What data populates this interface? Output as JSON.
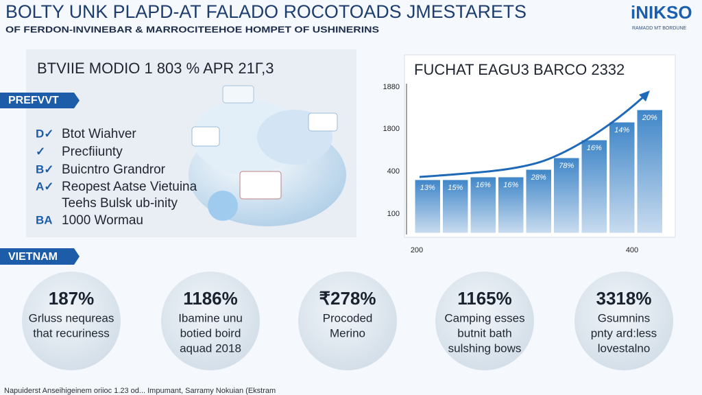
{
  "header": {
    "title": "BOLTY UNK PLAPD-AT FALADO ROCOTOADS JMESTARETS",
    "subtitle": "OF FERDON-INVINEBAR & MARROCITEEHOE HOMPET OF USHINERINS",
    "logo": "iNIKSO",
    "logo_tagline": "RAMADD MT BORDUNE"
  },
  "left_panel": {
    "title": "BTVIIE MODIO 1 803 % APR 21Г,3",
    "ribbon": "PREFVVT",
    "items": [
      {
        "marker": "D✓",
        "text": "Btot Wiahver"
      },
      {
        "marker": "✓",
        "text": "Precfiiunty"
      },
      {
        "marker": "B✓",
        "text": "Buicntro Grandror"
      },
      {
        "marker": "A✓",
        "text": "Reopest Aatse Vietuina"
      },
      {
        "marker": "",
        "text": "Teehs Bulsk ub-inity"
      },
      {
        "marker": "BA",
        "text": "1000 Wormau"
      }
    ]
  },
  "chart_panel": {
    "title": "FUCHAT EAGU3 BARCO 2332",
    "y_labels": [
      "1880",
      "1800",
      "400",
      "100"
    ],
    "x_labels": [
      "200",
      "400"
    ],
    "bar_labels": [
      "13%",
      "15%",
      "16%",
      "16%",
      "28%",
      "78%",
      "16%",
      "14%",
      "20%"
    ]
  },
  "vietnam": {
    "ribbon": "VIETNAM",
    "circles": [
      {
        "value": "187%",
        "lines": [
          "Grluss nequreas",
          "that recuriness"
        ]
      },
      {
        "value": "1186%",
        "lines": [
          "Ibamine unu",
          "botied boird",
          "aquad 2018"
        ]
      },
      {
        "value": "₹278%",
        "lines": [
          "Procoded",
          "Merino"
        ]
      },
      {
        "value": "1165%",
        "lines": [
          "Camping esses",
          "butnit bath",
          "sulshing bows"
        ]
      },
      {
        "value": "3318%",
        "lines": [
          "Gsumnins",
          "pnty ard:less",
          "lovestalno"
        ]
      }
    ]
  },
  "footer": "Napuiderst Anseihigeinem oriioc 1.23 od... Impumant, Sarramy Nokuian (Ekstram"
}
